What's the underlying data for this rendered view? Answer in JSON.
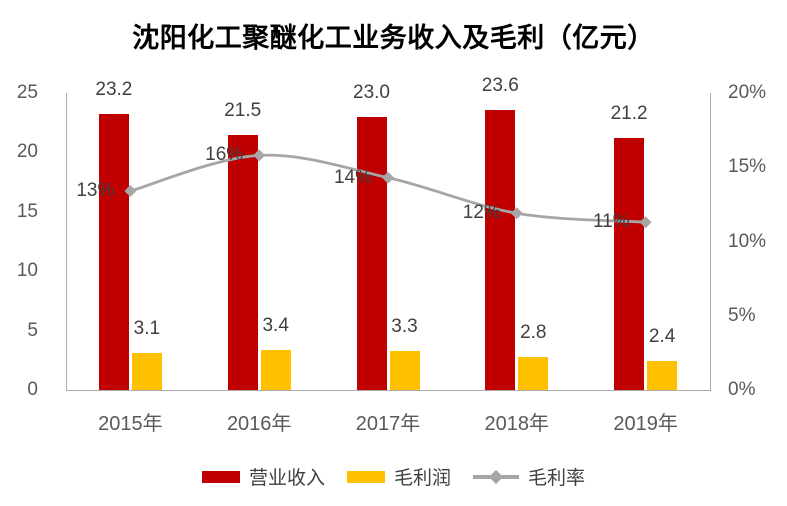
{
  "chart_data": {
    "type": "combo-bar-line",
    "title": "沈阳化工聚醚化工业务收入及毛利（亿元）",
    "unit": "亿元",
    "categories": [
      "2015年",
      "2016年",
      "2017年",
      "2018年",
      "2019年"
    ],
    "series": [
      {
        "name": "营业收入",
        "type": "bar",
        "axis": "left",
        "color": "#C00000",
        "values": [
          23.2,
          21.5,
          23.0,
          23.6,
          21.2
        ],
        "labels": [
          "23.2",
          "21.5",
          "23.0",
          "23.6",
          "21.2"
        ]
      },
      {
        "name": "毛利润",
        "type": "bar",
        "axis": "left",
        "color": "#FFC000",
        "values": [
          3.1,
          3.4,
          3.3,
          2.8,
          2.4
        ],
        "labels": [
          "3.1",
          "3.4",
          "3.3",
          "2.8",
          "2.4"
        ]
      },
      {
        "name": "毛利率",
        "type": "line",
        "axis": "right",
        "color": "#A6A6A6",
        "marker": "diamond",
        "values_pct": [
          13.4,
          15.8,
          14.3,
          11.9,
          11.3
        ],
        "labels": [
          "13%",
          "16%",
          "14%",
          "12%",
          "11%"
        ]
      }
    ],
    "left_axis": {
      "min": 0,
      "max": 25,
      "ticks": [
        "25",
        "20",
        "15",
        "10",
        "5",
        "0"
      ]
    },
    "right_axis": {
      "min": 0,
      "max": 20,
      "ticks": [
        "20%",
        "15%",
        "10%",
        "5%",
        "0%"
      ]
    },
    "legend_position": "bottom",
    "grid": false
  },
  "colors": {
    "revenue_bar": "#C00000",
    "profit_bar": "#FFC000",
    "margin_line": "#A6A6A6",
    "axis_line": "#ABABAB",
    "data_label_text": "#404040",
    "tick_text": "#595959",
    "title_text": "#000000",
    "background": "#FFFFFF"
  }
}
